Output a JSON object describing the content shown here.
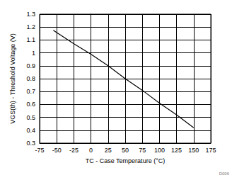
{
  "chart_data": {
    "type": "line",
    "xlabel": "TC - Case Temperature (°C)",
    "ylabel": "VGS(th) - Threshold Voltage (V)",
    "annotation": "D006",
    "x": [
      -55,
      -25,
      0,
      25,
      50,
      75,
      100,
      125,
      150
    ],
    "values": [
      1.175,
      1.07,
      0.99,
      0.9,
      0.8,
      0.71,
      0.61,
      0.52,
      0.42
    ],
    "color": "#000000",
    "xlim": [
      -75,
      175
    ],
    "xticks": [
      -75,
      -50,
      -25,
      0,
      25,
      50,
      75,
      100,
      125,
      150,
      175
    ],
    "ylim": [
      0.3,
      1.3
    ],
    "yticks": [
      0.3,
      0.4,
      0.5,
      0.6,
      0.7,
      0.8,
      0.9,
      1,
      1.1,
      1.2,
      1.3
    ],
    "grid": true
  }
}
